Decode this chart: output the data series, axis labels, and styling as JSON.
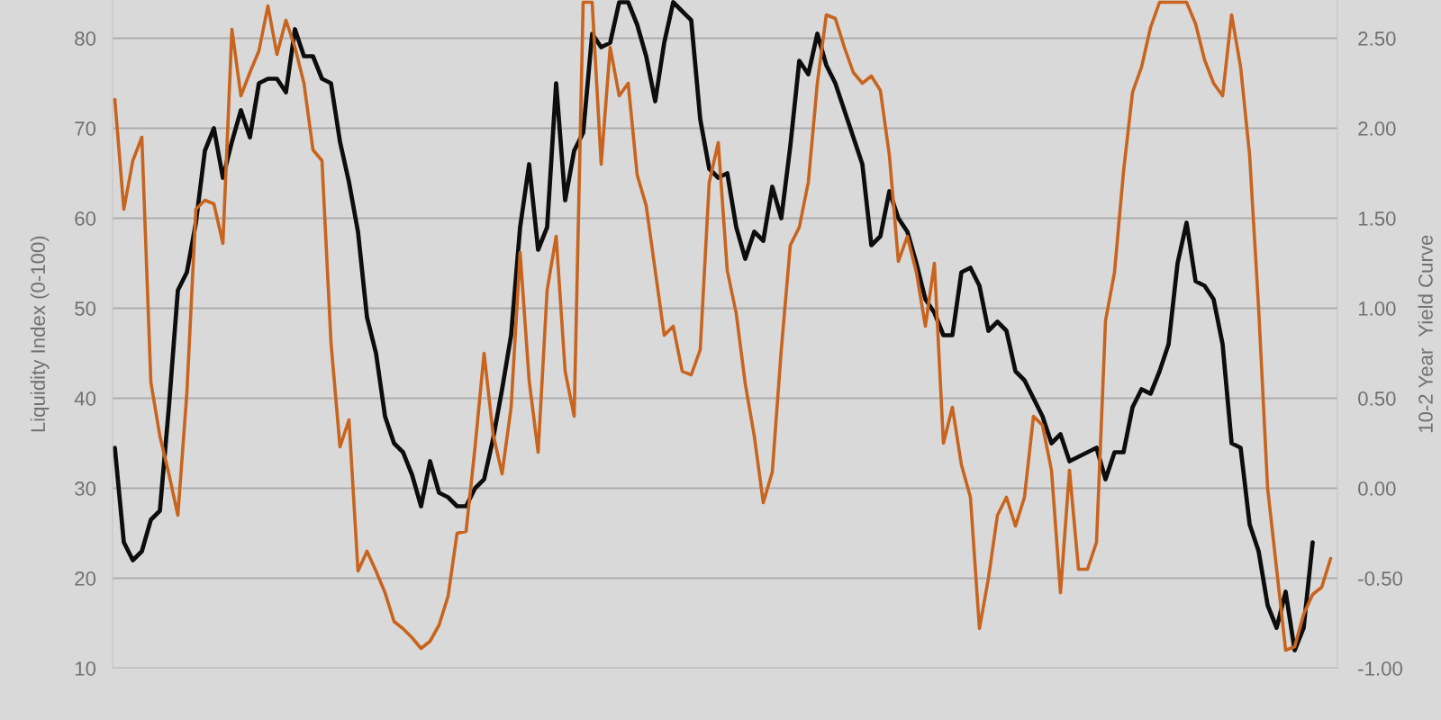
{
  "chart_data": {
    "type": "line",
    "ylabel": "Liquidity Index (0-100)",
    "y2label": "10-2 Year  Yield Curve",
    "categories": [
      null,
      null,
      null,
      null,
      null,
      null,
      null,
      null,
      null,
      null,
      null,
      null,
      null,
      null,
      null,
      null,
      null,
      null,
      null,
      null,
      null,
      null,
      null,
      null,
      null,
      null,
      null,
      null,
      null,
      null,
      null,
      null,
      null,
      null,
      null,
      null,
      null,
      null,
      null,
      null,
      null,
      null,
      null,
      null,
      null,
      null,
      null,
      null,
      null,
      null,
      null,
      null,
      null,
      null,
      null,
      null,
      null,
      null,
      null,
      null,
      null,
      null,
      null,
      null,
      null,
      null,
      null,
      null,
      null,
      null,
      null,
      null,
      null,
      null,
      null,
      null,
      null,
      null,
      null,
      null,
      null,
      null,
      null,
      null,
      null,
      null,
      null,
      null,
      null,
      null,
      null,
      null,
      null,
      null,
      null,
      null,
      null,
      null,
      null,
      null,
      null,
      null,
      null,
      null,
      null,
      null,
      null,
      null,
      null,
      null,
      null,
      null,
      null,
      null,
      null,
      null,
      null,
      null,
      null,
      null,
      null,
      null,
      null,
      null,
      null,
      null,
      null,
      null,
      null,
      null,
      null,
      null,
      null,
      null,
      null,
      null
    ],
    "ylim": [
      10,
      84.25
    ],
    "yticks": [
      10,
      20,
      30,
      40,
      50,
      60,
      70,
      80
    ],
    "y2lim": [
      -1.0,
      2.7125
    ],
    "y2ticks": [
      {
        "value": -1.0,
        "label": "-1.00"
      },
      {
        "value": -0.5,
        "label": "-0.50"
      },
      {
        "value": 0.0,
        "label": "0.00"
      },
      {
        "value": 0.5,
        "label": "0.50"
      },
      {
        "value": 1.0,
        "label": "1.00"
      },
      {
        "value": 1.5,
        "label": "1.50"
      },
      {
        "value": 2.0,
        "label": "2.00"
      },
      {
        "value": 2.5,
        "label": "2.50"
      }
    ],
    "grid": "y",
    "marker": "none",
    "line_style": "solid",
    "series": [
      {
        "color": "#0d0d0d",
        "values": [
          34.5,
          24,
          22,
          23,
          26.5,
          27.5,
          39,
          52,
          54,
          59.5,
          67.5,
          70,
          64.5,
          68.5,
          72,
          69,
          75,
          75.5,
          75.5,
          74,
          81,
          78,
          78,
          75.5,
          75,
          68.5,
          64,
          58.5,
          49,
          45,
          38,
          35,
          34,
          31.5,
          28,
          33,
          29.5,
          29,
          28,
          28,
          30,
          31,
          35.5,
          41,
          47,
          59,
          66,
          56.5,
          59,
          75,
          62,
          67.5,
          69.5,
          80.5,
          79,
          79.5,
          84,
          84,
          81.5,
          78,
          73,
          79.5,
          84,
          83,
          82,
          71,
          65.5,
          64.5,
          65,
          59,
          55.5,
          58.5,
          57.5,
          63.5,
          60,
          68,
          77.5,
          76,
          80.5,
          77,
          75,
          72,
          69,
          66,
          57,
          58,
          63,
          60,
          58.5,
          55,
          51,
          49.5,
          47,
          47,
          54,
          54.5,
          52.5,
          47.5,
          48.5,
          47.5,
          43,
          42,
          40,
          38,
          35,
          36,
          33,
          33.5,
          34,
          34.5,
          31,
          34,
          34,
          39,
          41,
          40.5,
          43,
          46,
          55,
          59.5,
          53,
          52.5,
          51,
          46,
          35,
          34.5,
          26,
          23,
          17,
          14.5,
          18.5,
          12,
          14.5,
          24,
          null,
          null
        ]
      },
      {
        "color": "#c8641e",
        "axis": "y2",
        "values": [
          2.16,
          1.55,
          1.82,
          1.95,
          0.59,
          0.29,
          0.08,
          -0.15,
          0.53,
          1.55,
          1.6,
          1.58,
          1.36,
          2.55,
          2.18,
          2.31,
          2.43,
          2.68,
          2.41,
          2.6,
          2.45,
          2.25,
          1.88,
          1.82,
          0.81,
          0.23,
          0.38,
          -0.46,
          -0.35,
          -0.46,
          -0.58,
          -0.74,
          -0.78,
          -0.83,
          -0.89,
          -0.85,
          -0.76,
          -0.6,
          -0.25,
          -0.24,
          0.23,
          0.75,
          0.3,
          0.08,
          0.45,
          1.31,
          0.6,
          0.2,
          1.1,
          1.4,
          0.65,
          0.4,
          2.7,
          2.7,
          1.8,
          2.45,
          2.18,
          2.25,
          1.74,
          1.57,
          1.21,
          0.85,
          0.9,
          0.65,
          0.63,
          0.77,
          1.7,
          1.92,
          1.21,
          0.97,
          0.58,
          0.29,
          -0.08,
          0.09,
          0.77,
          1.35,
          1.45,
          1.7,
          2.25,
          2.63,
          2.61,
          2.45,
          2.31,
          2.25,
          2.29,
          2.21,
          1.85,
          1.26,
          1.4,
          1.2,
          0.9,
          1.25,
          0.25,
          0.45,
          0.13,
          -0.05,
          -0.78,
          -0.5,
          -0.15,
          -0.05,
          -0.21,
          -0.05,
          0.4,
          0.35,
          0.1,
          -0.58,
          0.1,
          -0.45,
          -0.45,
          -0.3,
          0.93,
          1.2,
          1.76,
          2.2,
          2.34,
          2.56,
          2.7,
          2.7,
          2.7,
          2.7,
          2.58,
          2.38,
          2.25,
          2.18,
          2.63,
          2.34,
          1.85,
          1.0,
          0.0,
          -0.45,
          -0.9,
          -0.88,
          -0.7,
          -0.59,
          -0.55,
          -0.39
        ]
      }
    ]
  }
}
